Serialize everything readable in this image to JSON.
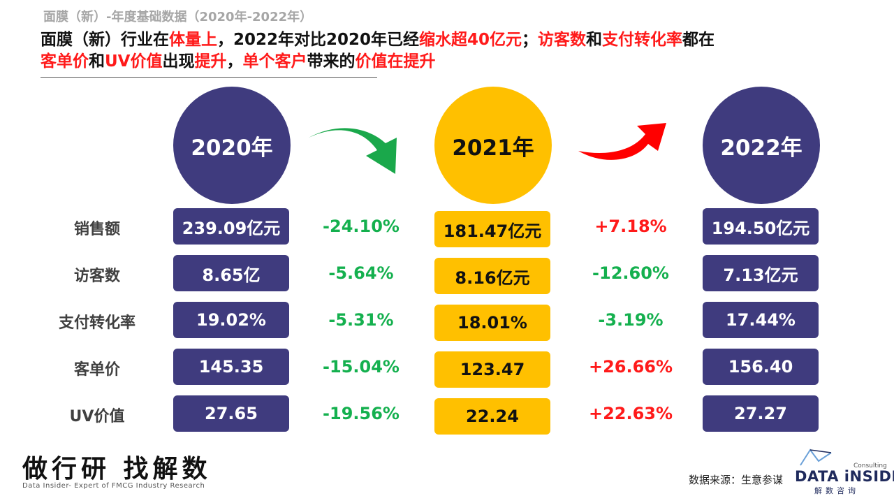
{
  "top_title": "面膜（新）-年度基础数据（2020年-2022年）",
  "headline": {
    "line1": [
      {
        "text": "面膜（新）行业在",
        "red": false
      },
      {
        "text": "体量上",
        "red": true
      },
      {
        "text": "，2022年对比2020年已经",
        "red": false
      },
      {
        "text": "缩水超40亿元",
        "red": true
      },
      {
        "text": "；",
        "red": false
      },
      {
        "text": "访客数",
        "red": true
      },
      {
        "text": "和",
        "red": false
      },
      {
        "text": "支付转化率",
        "red": true
      },
      {
        "text": "都在",
        "red": false
      }
    ],
    "line2": [
      {
        "text": "客单价",
        "red": true
      },
      {
        "text": "和",
        "red": false
      },
      {
        "text": "UV价值",
        "red": true
      },
      {
        "text": "出现",
        "red": false
      },
      {
        "text": "提升",
        "red": true
      },
      {
        "text": "，",
        "red": false
      },
      {
        "text": "单个客户",
        "red": true
      },
      {
        "text": "带来的",
        "red": false
      },
      {
        "text": "价值在提升",
        "red": true
      }
    ]
  },
  "years": [
    {
      "label": "2020年",
      "color": "#3f3b7e"
    },
    {
      "label": "2021年",
      "color": "#ffc000"
    },
    {
      "label": "2022年",
      "color": "#3f3b7e"
    }
  ],
  "arrows": {
    "first": {
      "direction": "down-right",
      "color": "#1aa84b",
      "icon": "curved-arrow-down-icon"
    },
    "second": {
      "direction": "up-right",
      "color": "#ff0000",
      "icon": "curved-arrow-up-icon"
    }
  },
  "metrics": [
    {
      "label": "销售额",
      "y2020": "239.09亿元",
      "chg1": "-24.10%",
      "chg1_up": false,
      "y2021": "181.47亿元",
      "chg2": "+7.18%",
      "chg2_up": true,
      "y2022": "194.50亿元"
    },
    {
      "label": "访客数",
      "y2020": "8.65亿",
      "chg1": "-5.64%",
      "chg1_up": false,
      "y2021": "8.16亿元",
      "chg2": "-12.60%",
      "chg2_up": false,
      "y2022": "7.13亿元"
    },
    {
      "label": "支付转化率",
      "y2020": "19.02%",
      "chg1": "-5.31%",
      "chg1_up": false,
      "y2021": "18.01%",
      "chg2": "-3.19%",
      "chg2_up": false,
      "y2022": "17.44%"
    },
    {
      "label": "客单价",
      "y2020": "145.35",
      "chg1": "-15.04%",
      "chg1_up": false,
      "y2021": "123.47",
      "chg2": "+26.66%",
      "chg2_up": true,
      "y2022": "156.40"
    },
    {
      "label": "UV价值",
      "y2020": "27.65",
      "chg1": "-19.56%",
      "chg1_up": false,
      "y2021": "22.24",
      "chg2": "+22.63%",
      "chg2_up": true,
      "y2022": "27.27"
    }
  ],
  "footer": {
    "slogan": "做行研 找解数",
    "slogan_sub": "Data Insider- Expert of FMCG Industry Research",
    "source": "数据来源：生意参谋",
    "logo_main": "DATA iNSIDER",
    "logo_sub": "解数咨询",
    "logo_tag": "Consulting"
  },
  "colors": {
    "purple": "#3f3b7e",
    "yellow": "#ffc000",
    "green": "#14b04e",
    "red": "#ff1a1a"
  }
}
